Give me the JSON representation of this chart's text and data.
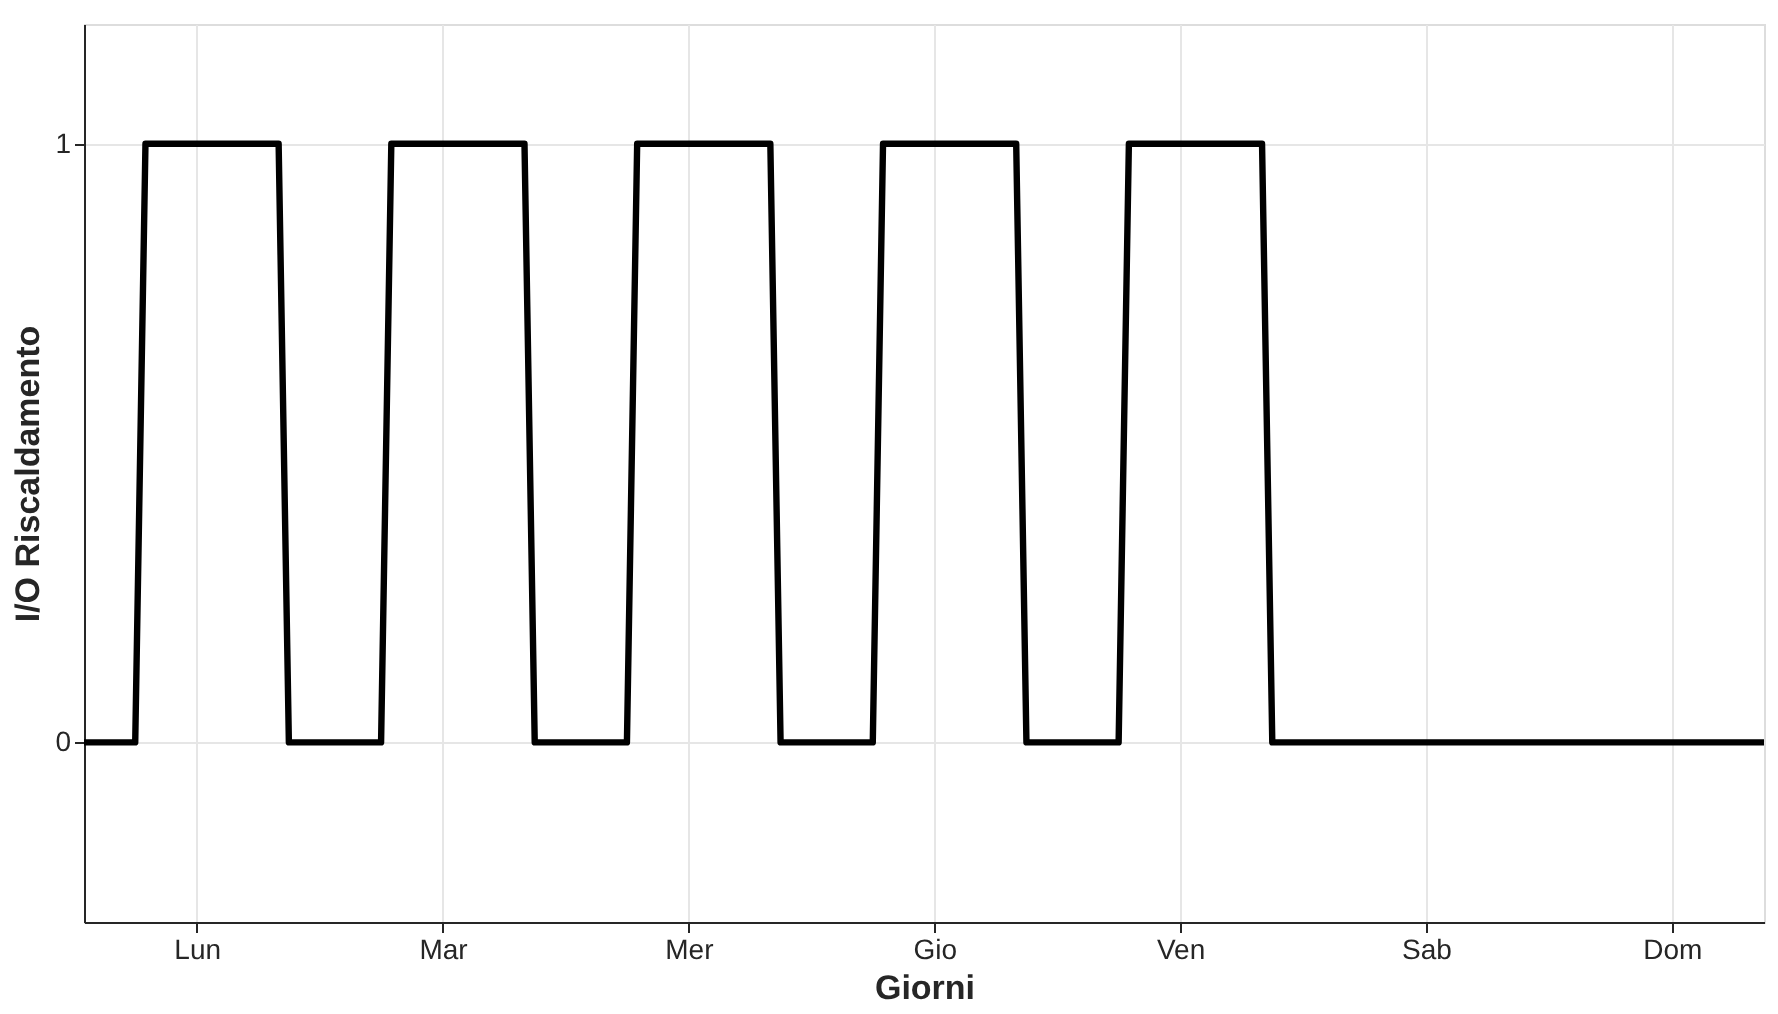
{
  "chart_data": {
    "type": "line",
    "xlabel": "Giorni",
    "ylabel": "I/O Riscaldamento",
    "categories": [
      null,
      null,
      null,
      null,
      null,
      null,
      null,
      null,
      null,
      null,
      null,
      "Lun",
      null,
      null,
      null,
      null,
      null,
      null,
      null,
      null,
      null,
      null,
      null,
      null,
      null,
      null,
      null,
      null,
      null,
      null,
      null,
      null,
      null,
      null,
      null,
      "Mar",
      null,
      null,
      null,
      null,
      null,
      null,
      null,
      null,
      null,
      null,
      null,
      null,
      null,
      null,
      null,
      null,
      null,
      null,
      null,
      null,
      null,
      null,
      null,
      "Mer",
      null,
      null,
      null,
      null,
      null,
      null,
      null,
      null,
      null,
      null,
      null,
      null,
      null,
      null,
      null,
      null,
      null,
      null,
      null,
      null,
      null,
      null,
      null,
      "Gio",
      null,
      null,
      null,
      null,
      null,
      null,
      null,
      null,
      null,
      null,
      null,
      null,
      null,
      null,
      null,
      null,
      null,
      null,
      null,
      null,
      null,
      null,
      null,
      "Ven",
      null,
      null,
      null,
      null,
      null,
      null,
      null,
      null,
      null,
      null,
      null,
      null,
      null,
      null,
      null,
      null,
      null,
      null,
      null,
      null,
      null,
      null,
      null,
      "Sab",
      null,
      null,
      null,
      null,
      null,
      null,
      null,
      null,
      null,
      null,
      null,
      null,
      null,
      null,
      null,
      null,
      null,
      null,
      null,
      null,
      null,
      null,
      null,
      "Dom",
      null,
      null,
      null,
      null,
      null,
      null,
      null,
      null,
      null
    ],
    "series": [
      {
        "color": "#000000",
        "values": [
          0,
          0,
          0,
          0,
          0,
          0,
          1,
          1,
          1,
          1,
          1,
          1,
          1,
          1,
          1,
          1,
          1,
          1,
          1,
          1,
          0,
          0,
          0,
          0,
          0,
          0,
          0,
          0,
          0,
          0,
          1,
          1,
          1,
          1,
          1,
          1,
          1,
          1,
          1,
          1,
          1,
          1,
          1,
          1,
          0,
          0,
          0,
          0,
          0,
          0,
          0,
          0,
          0,
          0,
          1,
          1,
          1,
          1,
          1,
          1,
          1,
          1,
          1,
          1,
          1,
          1,
          1,
          1,
          0,
          0,
          0,
          0,
          0,
          0,
          0,
          0,
          0,
          0,
          1,
          1,
          1,
          1,
          1,
          1,
          1,
          1,
          1,
          1,
          1,
          1,
          1,
          1,
          0,
          0,
          0,
          0,
          0,
          0,
          0,
          0,
          0,
          0,
          1,
          1,
          1,
          1,
          1,
          1,
          1,
          1,
          1,
          1,
          1,
          1,
          1,
          1,
          0,
          0,
          0,
          0,
          0,
          0,
          0,
          0,
          0,
          0,
          0,
          0,
          0,
          0,
          0,
          0,
          0,
          0,
          0,
          0,
          0,
          0,
          0,
          0,
          0,
          0,
          0,
          0,
          0,
          0,
          0,
          0,
          0,
          0,
          0,
          0,
          0,
          0,
          0,
          0,
          0,
          0,
          0,
          0,
          0,
          0,
          0,
          0,
          0
        ]
      }
    ],
    "ylim": [
      -0.3,
      1.2
    ],
    "yticks": [
      0,
      1
    ],
    "grid": true,
    "marker": "none",
    "line_style": "solid"
  }
}
